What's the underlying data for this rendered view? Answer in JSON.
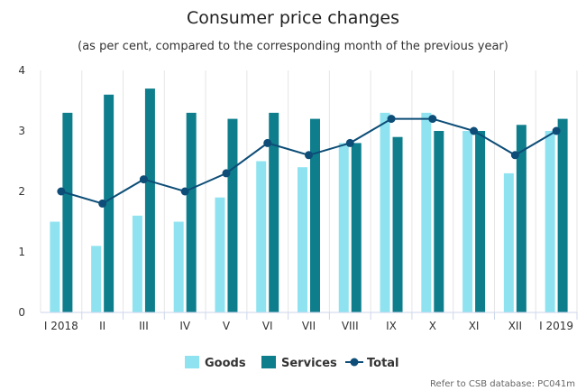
{
  "chart_data": {
    "type": "bar",
    "title": "Consumer price changes",
    "subtitle": "(as per cent, compared to the corresponding month of the previous year)",
    "categories": [
      "I 2018",
      "II",
      "III",
      "IV",
      "V",
      "VI",
      "VII",
      "VIII",
      "IX",
      "X",
      "XI",
      "XII",
      "I 2019"
    ],
    "ylim": [
      0,
      4
    ],
    "yticks": [
      0,
      1,
      2,
      3,
      4
    ],
    "grid": "vertical category dividers",
    "legend_position": "bottom-center",
    "series": [
      {
        "name": "Goods",
        "type": "bar",
        "color": "#8fe3f1",
        "values": [
          1.5,
          1.1,
          1.6,
          1.5,
          1.9,
          2.5,
          2.4,
          2.8,
          3.3,
          3.3,
          3.0,
          2.3,
          3.0
        ]
      },
      {
        "name": "Services",
        "type": "bar",
        "color": "#0e7e8c",
        "values": [
          3.3,
          3.6,
          3.7,
          3.3,
          3.2,
          3.3,
          3.2,
          2.8,
          2.9,
          3.0,
          3.0,
          3.1,
          3.2
        ]
      },
      {
        "name": "Total",
        "type": "line",
        "color": "#0d4d77",
        "values": [
          2.0,
          1.8,
          2.2,
          2.0,
          2.3,
          2.8,
          2.6,
          2.8,
          3.2,
          3.2,
          3.0,
          2.6,
          3.0
        ]
      }
    ],
    "credit": "Refer to CSB database: PC041m"
  }
}
